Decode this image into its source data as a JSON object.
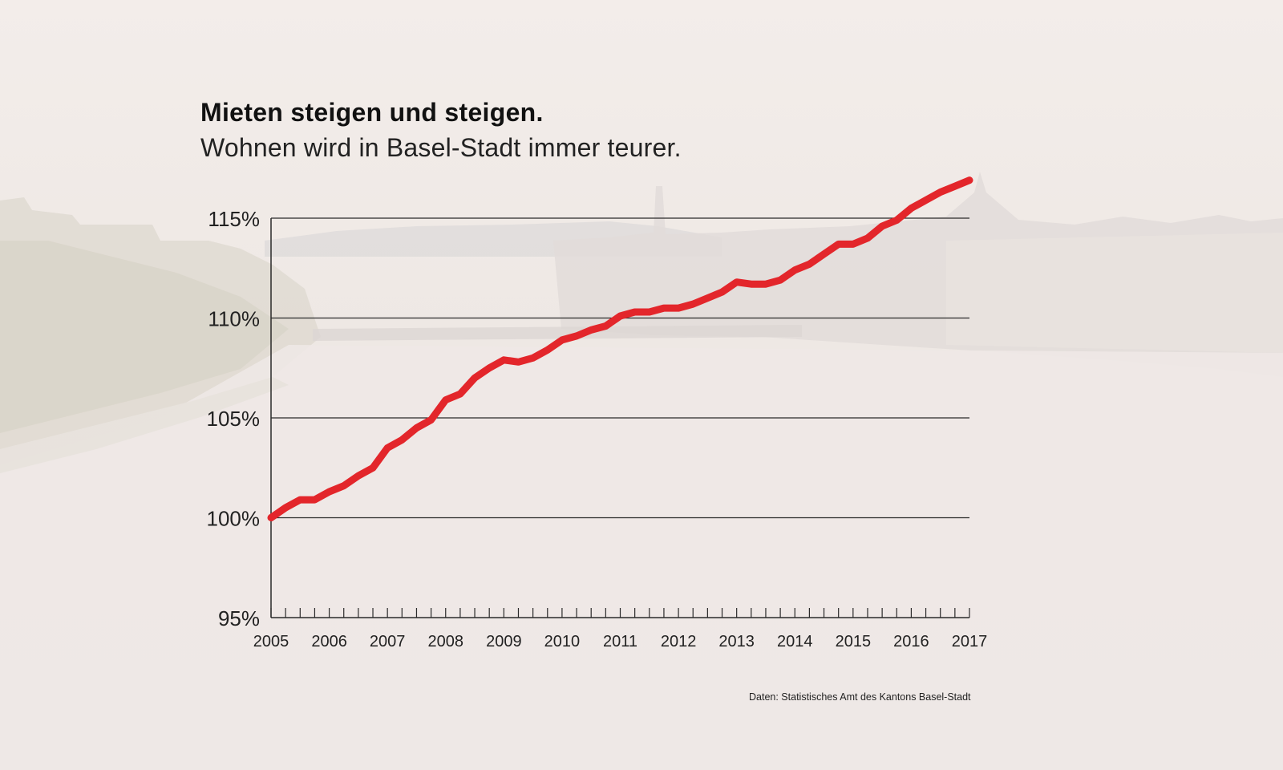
{
  "header": {
    "title": "Mieten steigen und steigen.",
    "subtitle": "Wohnen wird in Basel-Stadt immer teurer."
  },
  "source_note": "Daten: Statistisches Amt des Kantons Basel-Stadt",
  "colors": {
    "line": "#e3262b",
    "axis": "#2a2a2a",
    "background": "#f1ebe8"
  },
  "chart_data": {
    "type": "line",
    "title": "Mieten steigen und steigen.",
    "subtitle": "Wohnen wird in Basel-Stadt immer teurer.",
    "xlabel": "",
    "ylabel": "",
    "xlim": [
      2005,
      2017
    ],
    "ylim": [
      95,
      115
    ],
    "grid": true,
    "legend": "none",
    "x_ticks": [
      "2005",
      "2006",
      "2007",
      "2008",
      "2009",
      "2010",
      "2011",
      "2012",
      "2013",
      "2014",
      "2015",
      "2016",
      "2017"
    ],
    "y_ticks": [
      "95%",
      "100%",
      "105%",
      "110%",
      "115%"
    ],
    "y_tick_values": [
      95,
      100,
      105,
      110,
      115
    ],
    "series": [
      {
        "x": [
          2005.0,
          2005.25,
          2005.5,
          2005.75,
          2006.0,
          2006.25,
          2006.5,
          2006.75,
          2007.0,
          2007.25,
          2007.5,
          2007.75,
          2008.0,
          2008.25,
          2008.5,
          2008.75,
          2009.0,
          2009.25,
          2009.5,
          2009.75,
          2010.0,
          2010.25,
          2010.5,
          2010.75,
          2011.0,
          2011.25,
          2011.5,
          2011.75,
          2012.0,
          2012.25,
          2012.5,
          2012.75,
          2013.0,
          2013.25,
          2013.5,
          2013.75,
          2014.0,
          2014.25,
          2014.5,
          2014.75,
          2015.0,
          2015.25,
          2015.5,
          2015.75,
          2016.0,
          2016.25,
          2016.5,
          2016.75,
          2017.0
        ],
        "values": [
          100.0,
          100.5,
          100.9,
          100.9,
          101.3,
          101.6,
          102.1,
          102.5,
          103.5,
          103.9,
          104.5,
          104.9,
          105.9,
          106.2,
          107.0,
          107.5,
          107.9,
          107.8,
          108.0,
          108.4,
          108.9,
          109.1,
          109.4,
          109.6,
          110.1,
          110.3,
          110.3,
          110.5,
          110.5,
          110.7,
          111.0,
          111.3,
          111.8,
          111.7,
          111.7,
          111.9,
          112.4,
          112.7,
          113.2,
          113.7,
          113.7,
          114.0,
          114.6,
          114.9,
          115.5,
          115.9,
          116.3,
          116.6,
          116.9
        ]
      }
    ]
  }
}
